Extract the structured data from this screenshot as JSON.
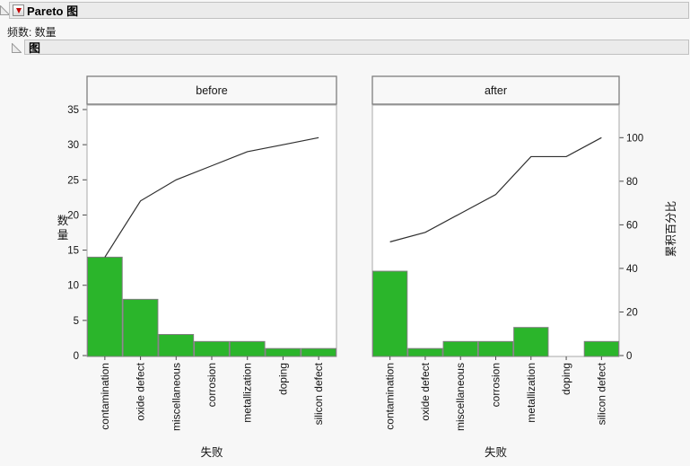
{
  "window": {
    "report_title": "Pareto 图",
    "frequency_label": "频数: 数量",
    "section_title": "图"
  },
  "icons": {
    "red_triangle_menu": "red-triangle-down",
    "disclosure_open": "gray-open-disclosure-triangle"
  },
  "colors": {
    "bar_green": "#2bb52b",
    "bar_border": "#7f7f7f",
    "line": "#2f2f2f",
    "titlebar_bg": "#ebebeb",
    "page_bg": "#f7f7f7"
  },
  "chart_data": {
    "type": "bar",
    "subtype": "pareto",
    "categories": [
      "contamination",
      "oxide defect",
      "miscellaneous",
      "corrosion",
      "metallization",
      "doping",
      "silicon defect"
    ],
    "panels": [
      {
        "label": "before",
        "values": [
          14,
          8,
          3,
          2,
          2,
          1,
          1
        ],
        "cumulative_percent": [
          45.16,
          70.97,
          80.65,
          87.1,
          93.55,
          96.77,
          100
        ]
      },
      {
        "label": "after",
        "values": [
          12,
          1,
          2,
          2,
          4,
          0,
          2
        ],
        "cumulative_percent": [
          52.17,
          56.52,
          65.22,
          73.91,
          91.3,
          91.3,
          100
        ]
      }
    ],
    "xlabel": "失败",
    "ylabel": "数量",
    "y2label": "累积百分比",
    "yticks": [
      0,
      5,
      10,
      15,
      20,
      25,
      30,
      35
    ],
    "ylim": [
      0,
      35.6
    ],
    "y2ticks": [
      0,
      20,
      40,
      60,
      80,
      100
    ],
    "y2lim": [
      0,
      100
    ],
    "grid": false,
    "legend": "none",
    "bar_color": "#2bb52b",
    "line_color": "#2f2f2f"
  }
}
